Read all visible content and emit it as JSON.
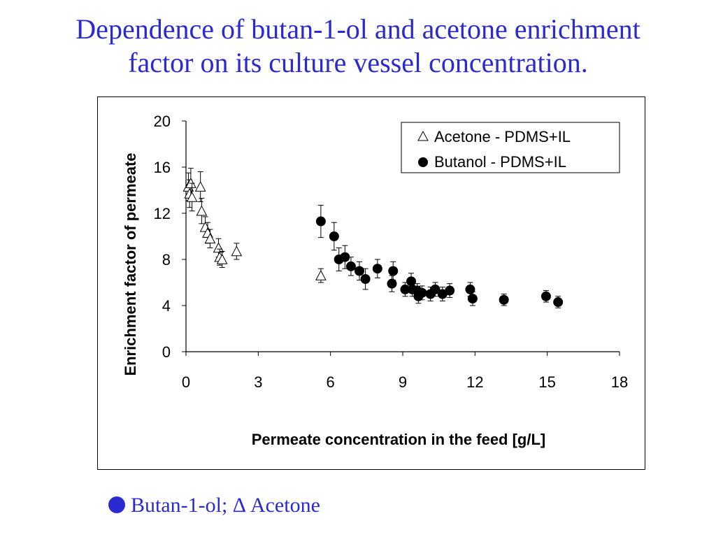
{
  "slide": {
    "title_line1": "Dependence of butan-1-ol and acetone enrichment",
    "title_line2": "factor on its culture vessel concentration.",
    "caption": "Butan-1-ol; Δ Acetone",
    "title_color": "#2a2ad0"
  },
  "chart_data": {
    "type": "scatter",
    "title": "",
    "xlabel": "Permeate concentration in the feed [g/L]",
    "ylabel": "Enrichment factor of permeate",
    "xlim": [
      0,
      18
    ],
    "ylim": [
      0,
      20
    ],
    "xticks": [
      0,
      3,
      6,
      9,
      12,
      15,
      18
    ],
    "yticks": [
      0,
      4,
      8,
      12,
      16,
      20
    ],
    "grid": false,
    "legend_position": "top-right",
    "series": [
      {
        "name": "Acetone - PDMS+IL",
        "marker": "open-triangle",
        "points": [
          {
            "x": 0.1,
            "y": 14.3,
            "err": 1.2
          },
          {
            "x": 0.15,
            "y": 13.7,
            "err": 1.2
          },
          {
            "x": 0.2,
            "y": 14.6,
            "err": 1.3
          },
          {
            "x": 0.25,
            "y": 13.4,
            "err": 1.2
          },
          {
            "x": 0.6,
            "y": 14.3,
            "err": 1.3
          },
          {
            "x": 0.65,
            "y": 12.2,
            "err": 1.1
          },
          {
            "x": 0.8,
            "y": 10.8,
            "err": 0.9
          },
          {
            "x": 0.9,
            "y": 10.3,
            "err": 0.9
          },
          {
            "x": 1.0,
            "y": 9.8,
            "err": 0.8
          },
          {
            "x": 1.35,
            "y": 9.0,
            "err": 0.8
          },
          {
            "x": 1.4,
            "y": 8.2,
            "err": 0.7
          },
          {
            "x": 1.5,
            "y": 8.0,
            "err": 0.7
          },
          {
            "x": 2.1,
            "y": 8.7,
            "err": 0.7
          },
          {
            "x": 5.6,
            "y": 6.6,
            "err": 0.6
          }
        ]
      },
      {
        "name": "Butanol - PDMS+IL",
        "marker": "filled-circle",
        "points": [
          {
            "x": 5.6,
            "y": 11.3,
            "err": 1.4
          },
          {
            "x": 6.15,
            "y": 10.0,
            "err": 1.2
          },
          {
            "x": 6.35,
            "y": 8.0,
            "err": 1.0
          },
          {
            "x": 6.6,
            "y": 8.2,
            "err": 1.0
          },
          {
            "x": 6.85,
            "y": 7.4,
            "err": 0.8
          },
          {
            "x": 7.2,
            "y": 7.0,
            "err": 0.8
          },
          {
            "x": 7.45,
            "y": 6.3,
            "err": 0.9
          },
          {
            "x": 7.95,
            "y": 7.2,
            "err": 0.8
          },
          {
            "x": 8.55,
            "y": 5.9,
            "err": 0.7
          },
          {
            "x": 8.6,
            "y": 7.0,
            "err": 0.8
          },
          {
            "x": 9.1,
            "y": 5.4,
            "err": 0.6
          },
          {
            "x": 9.35,
            "y": 6.1,
            "err": 0.7
          },
          {
            "x": 9.4,
            "y": 5.4,
            "err": 0.6
          },
          {
            "x": 9.6,
            "y": 5.3,
            "err": 0.6
          },
          {
            "x": 9.65,
            "y": 4.8,
            "err": 0.6
          },
          {
            "x": 9.8,
            "y": 5.1,
            "err": 0.6
          },
          {
            "x": 10.15,
            "y": 5.0,
            "err": 0.6
          },
          {
            "x": 10.35,
            "y": 5.4,
            "err": 0.6
          },
          {
            "x": 10.65,
            "y": 5.0,
            "err": 0.6
          },
          {
            "x": 10.95,
            "y": 5.3,
            "err": 0.6
          },
          {
            "x": 11.8,
            "y": 5.4,
            "err": 0.6
          },
          {
            "x": 11.9,
            "y": 4.6,
            "err": 0.6
          },
          {
            "x": 13.2,
            "y": 4.5,
            "err": 0.5
          },
          {
            "x": 14.95,
            "y": 4.8,
            "err": 0.5
          },
          {
            "x": 15.45,
            "y": 4.3,
            "err": 0.5
          }
        ]
      }
    ]
  }
}
